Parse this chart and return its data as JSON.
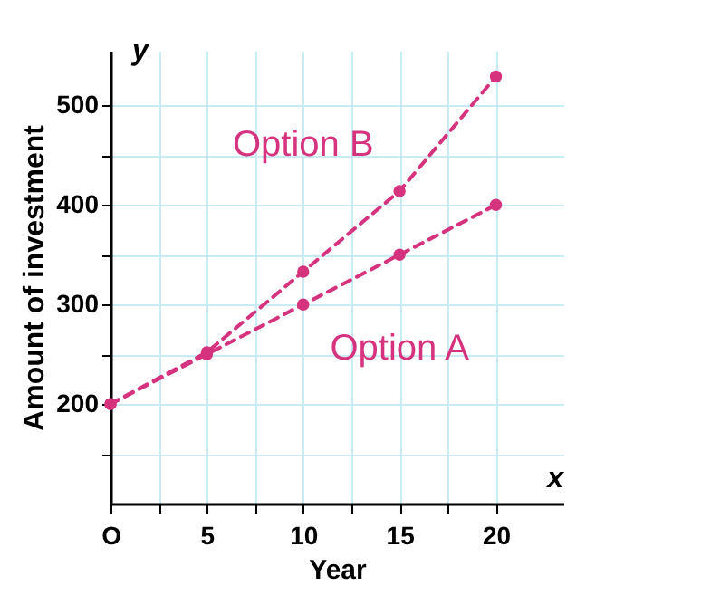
{
  "chart_data": {
    "type": "line",
    "xlabel": "Year",
    "ylabel": "Amount of investment",
    "annotations": [
      "x",
      "y"
    ],
    "x": [
      0,
      5,
      10,
      15,
      20
    ],
    "series": [
      {
        "name": "Option A",
        "color": "#d6337f",
        "values": [
          200,
          250,
          300,
          350,
          400
        ]
      },
      {
        "name": "Option B",
        "color": "#d6337f",
        "values": [
          200,
          252,
          333,
          414,
          529
        ]
      }
    ],
    "xlim": [
      0,
      23.5
    ],
    "ylim": [
      100,
      555
    ],
    "xticks": [
      {
        "value": 0,
        "label": "O"
      },
      {
        "value": 2.5,
        "label": null
      },
      5,
      {
        "value": 7.5,
        "label": null
      },
      10,
      {
        "value": 12.5,
        "label": null
      },
      15,
      {
        "value": 17.5,
        "label": null
      },
      20
    ],
    "yticks": [
      {
        "value": 150,
        "label": null
      },
      200,
      {
        "value": 250,
        "label": null
      },
      300,
      {
        "value": 350,
        "label": null
      },
      400,
      {
        "value": 450,
        "label": null
      },
      500
    ],
    "grid": true,
    "marker": "circle",
    "line_style": "dashed",
    "legend": false
  }
}
